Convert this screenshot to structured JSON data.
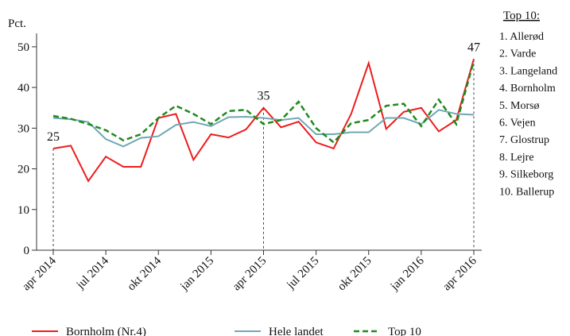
{
  "chart_data": {
    "type": "line",
    "y_label": "Pct.",
    "categories": [
      "apr 2014",
      null,
      null,
      "jul 2014",
      null,
      null,
      "okt 2014",
      null,
      null,
      "jan 2015",
      null,
      null,
      "apr 2015",
      null,
      null,
      "jul 2015",
      null,
      null,
      "okt 2015",
      null,
      null,
      "jan 2016",
      null,
      null,
      "apr 2016"
    ],
    "series": [
      {
        "name": "Bornholm (Nr.4)",
        "color": "#ee1c1c",
        "dashed": false,
        "values": [
          25,
          25.7,
          17,
          23,
          20.5,
          20.5,
          32.5,
          33.5,
          22.2,
          28.5,
          27.7,
          29.7,
          35,
          30.2,
          31.6,
          26.5,
          25,
          33.5,
          46,
          29.8,
          34,
          35,
          29.2,
          32,
          47
        ]
      },
      {
        "name": "Hele landet",
        "color": "#6fa8b4",
        "dashed": false,
        "values": [
          32.5,
          32.2,
          31.5,
          27.3,
          25.5,
          27.6,
          28,
          30.8,
          31.5,
          30.5,
          32.7,
          32.8,
          32.5,
          32,
          32.5,
          28.5,
          28.5,
          29,
          29,
          32.5,
          32.5,
          31,
          34.5,
          33.5,
          33.3
        ]
      },
      {
        "name": "Top 10",
        "color": "#1e8a1e",
        "dashed": true,
        "values": [
          33,
          32.3,
          31,
          29.5,
          27,
          28.5,
          32.5,
          35.5,
          33.5,
          31,
          34.2,
          34.5,
          31,
          32,
          36.5,
          30,
          26.5,
          31.2,
          32,
          35.5,
          36,
          30.5,
          37,
          31,
          46.5
        ]
      }
    ],
    "annotations": [
      {
        "x": "apr 2014",
        "value": 25
      },
      {
        "x": "apr 2015",
        "value": 35
      },
      {
        "x": "apr 2016",
        "value": 47
      }
    ],
    "ylim": [
      0,
      53.3
    ],
    "yticks": [
      0,
      10,
      20,
      30,
      40,
      50
    ],
    "side_list": {
      "title": "Top 10:",
      "items": [
        "1. Allerød",
        "2. Varde",
        "3. Langeland",
        "4. Bornholm",
        "5. Morsø",
        "6. Vejen",
        "7. Glostrup",
        "8. Lejre",
        "9. Silkeborg",
        "10. Ballerup"
      ]
    }
  }
}
